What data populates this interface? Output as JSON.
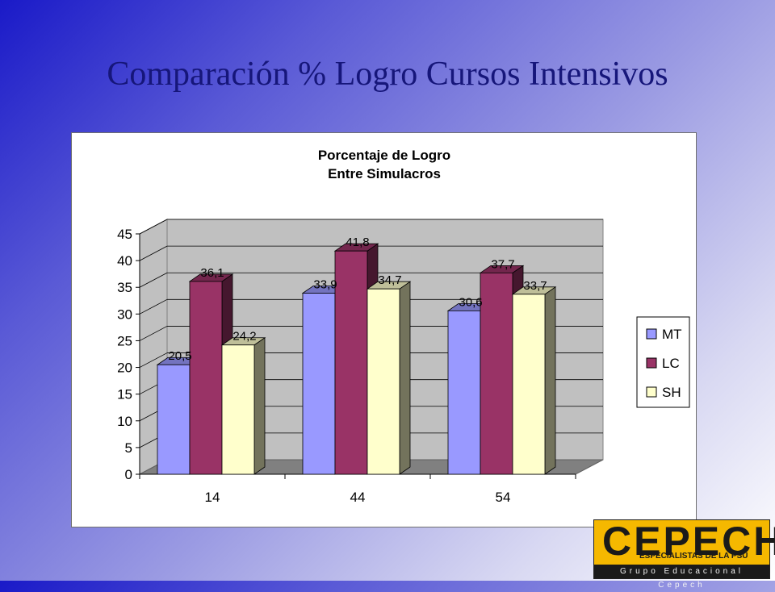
{
  "slide": {
    "title": "Comparación % Logro Cursos Intensivos"
  },
  "chart_data": {
    "type": "bar",
    "title_lines": [
      "Porcentaje de Logro",
      "Entre Simulacros"
    ],
    "categories": [
      "14",
      "44",
      "54"
    ],
    "series": [
      {
        "name": "MT",
        "values": [
          20.5,
          33.9,
          30.6
        ],
        "labels": [
          "20,5",
          "33,9",
          "30,6"
        ],
        "color": "#9999ff"
      },
      {
        "name": "LC",
        "values": [
          36.1,
          41.8,
          37.7
        ],
        "labels": [
          "36,1",
          "41,8",
          "37,7"
        ],
        "color": "#993366"
      },
      {
        "name": "SH",
        "values": [
          24.2,
          34.7,
          33.7
        ],
        "labels": [
          "24,2",
          "34,7",
          "33,7"
        ],
        "color": "#ffffcc"
      }
    ],
    "yticks": [
      0,
      5,
      10,
      15,
      20,
      25,
      30,
      35,
      40,
      45
    ],
    "ylim": [
      0,
      45
    ],
    "grid": true,
    "legend": "right",
    "style": "3d-clustered-column"
  },
  "logo": {
    "name": "CEPECH",
    "tagline": "ESPECIALISTAS DE LA PSU",
    "bar_text": "Grupo Educacional Cepech"
  }
}
